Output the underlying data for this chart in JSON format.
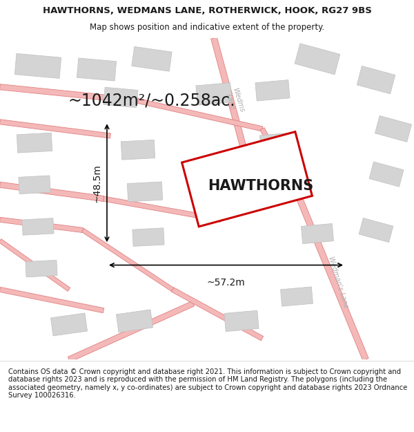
{
  "title_line1": "HAWTHORNS, WEDMANS LANE, ROTHERWICK, HOOK, RG27 9BS",
  "title_line2": "Map shows position and indicative extent of the property.",
  "area_text": "~1042m²/~0.258ac.",
  "property_label": "HAWTHORNS",
  "width_label": "~57.2m",
  "height_label": "~48.5m",
  "footer_text": "Contains OS data © Crown copyright and database right 2021. This information is subject to Crown copyright and database rights 2023 and is reproduced with the permission of HM Land Registry. The polygons (including the associated geometry, namely x, y co-ordinates) are subject to Crown copyright and database rights 2023 Ordnance Survey 100026316.",
  "bg_color": "#ffffff",
  "map_bg": "#ffffff",
  "road_color": "#f4b8b8",
  "road_edge_color": "#e08080",
  "building_color": "#d4d4d4",
  "building_edge": "#c0c0c0",
  "property_outline_color": "#cc0000",
  "text_color": "#1a1a1a",
  "footer_color": "#1a1a1a",
  "road_label_color": "#b0b0b0",
  "title_fontsize": 9.5,
  "subtitle_fontsize": 8.5,
  "area_fontsize": 17,
  "property_label_fontsize": 15,
  "dim_fontsize": 10,
  "footer_fontsize": 7.2
}
